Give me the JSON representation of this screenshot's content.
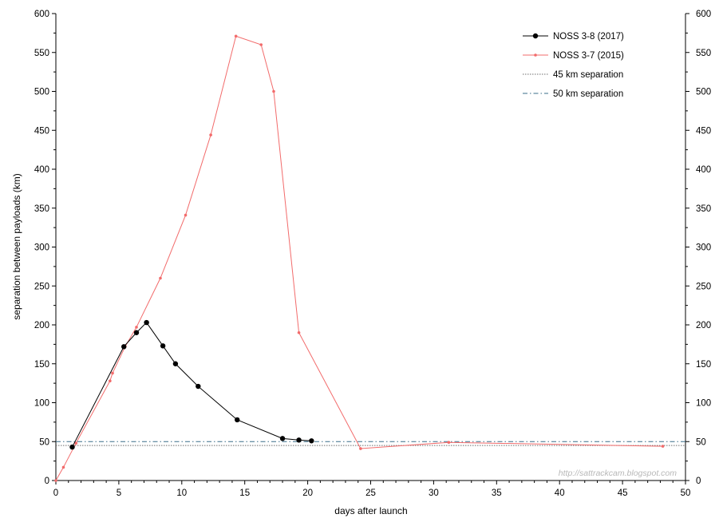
{
  "chart_data": {
    "type": "line",
    "xlabel": "days after launch",
    "ylabel": "separation between payloads (km)",
    "xlim": [
      0,
      50
    ],
    "ylim": [
      0,
      600
    ],
    "x_ticks": [
      0,
      5,
      10,
      15,
      20,
      25,
      30,
      35,
      40,
      45,
      50
    ],
    "y_ticks": [
      0,
      50,
      100,
      150,
      200,
      250,
      300,
      350,
      400,
      450,
      500,
      550,
      600
    ],
    "y_axis_right": true,
    "grid": false,
    "legend_position": "top-right",
    "watermark": "http://sattrackcam.blogspot.com",
    "series": [
      {
        "name": "NOSS 3-8  (2017)",
        "color": "#000000",
        "marker": "circle",
        "x": [
          1.3,
          5.4,
          6.4,
          7.2,
          8.5,
          9.5,
          11.3,
          14.4,
          18.0,
          19.3,
          20.3
        ],
        "y": [
          43,
          172,
          190,
          203,
          173,
          150,
          121,
          78,
          54,
          52,
          51
        ]
      },
      {
        "name": "NOSS 3-7  (2015)",
        "color": "#f26b6b",
        "marker": "small-circle",
        "x": [
          0.0,
          0.6,
          1.6,
          4.3,
          4.5,
          5.5,
          6.4,
          8.3,
          10.3,
          12.3,
          14.3,
          16.3,
          17.3,
          19.3,
          24.2,
          31.2,
          48.2
        ],
        "y": [
          0,
          17,
          48,
          128,
          138,
          172,
          197,
          260,
          341,
          444,
          571,
          560,
          500,
          190,
          41,
          49,
          44
        ]
      }
    ],
    "reference_lines": [
      {
        "name": "45 km separation",
        "value": 45,
        "color": "#6e6e6e",
        "dash": "dotted"
      },
      {
        "name": "50 km separation",
        "value": 50,
        "color": "#3a6e8a",
        "dash": "dashdot"
      }
    ]
  }
}
